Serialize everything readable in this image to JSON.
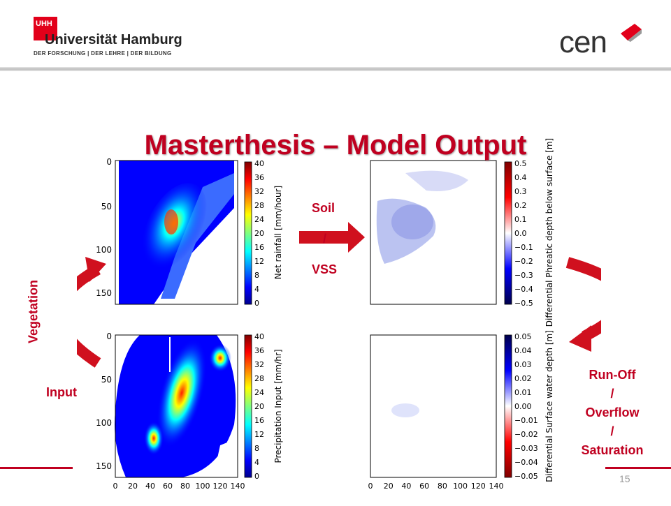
{
  "header": {
    "logo_mark": "UHH",
    "university_name": "Universität Hamburg",
    "university_subline": "DER FORSCHUNG | DER LEHRE | DER BILDUNG",
    "partner_logo_text": "cen"
  },
  "slide": {
    "title": "Masterthesis – Model Output",
    "page_number": "15"
  },
  "labels": {
    "soil": "Soil",
    "slash": "/",
    "vss": "VSS",
    "vegetation": "Vegetation",
    "input": "Input",
    "runoff_lines": [
      "Run-Off",
      "/",
      "Overflow",
      "/",
      "Saturation"
    ]
  },
  "plots": {
    "top_left": {
      "y_ticks": [
        "0",
        "50",
        "100",
        "150"
      ],
      "colorbar_ticks": [
        "40",
        "36",
        "32",
        "28",
        "24",
        "20",
        "16",
        "12",
        "8",
        "4",
        "0"
      ],
      "colorbar_label": "Net rainfall [mm/hour]"
    },
    "bottom_left": {
      "y_ticks": [
        "0",
        "50",
        "100",
        "150"
      ],
      "x_ticks": [
        "0",
        "20",
        "40",
        "60",
        "80",
        "100",
        "120",
        "140"
      ],
      "colorbar_ticks": [
        "40",
        "36",
        "32",
        "28",
        "24",
        "20",
        "16",
        "12",
        "8",
        "4",
        "0"
      ],
      "colorbar_label": "Precipitation Input [mm/hr]"
    },
    "top_right": {
      "colorbar_ticks": [
        "0.5",
        "0.4",
        "0.3",
        "0.2",
        "0.1",
        "0.0",
        "−0.1",
        "−0.2",
        "−0.3",
        "−0.4",
        "−0.5"
      ],
      "colorbar_label": "Differential Phreatic depth below surface [m]"
    },
    "bottom_right": {
      "x_ticks": [
        "0",
        "20",
        "40",
        "60",
        "80",
        "100",
        "120",
        "140"
      ],
      "colorbar_ticks": [
        "0.05",
        "0.04",
        "0.03",
        "0.02",
        "0.01",
        "0.00",
        "−0.01",
        "−0.02",
        "−0.03",
        "−0.04",
        "−0.05"
      ],
      "colorbar_label": "Differential Surface water depth [m]"
    }
  },
  "colors": {
    "accent_red": "#c00020",
    "brand_red": "#e2001a",
    "jet_low": "#00008f",
    "jet_high": "#800000"
  }
}
